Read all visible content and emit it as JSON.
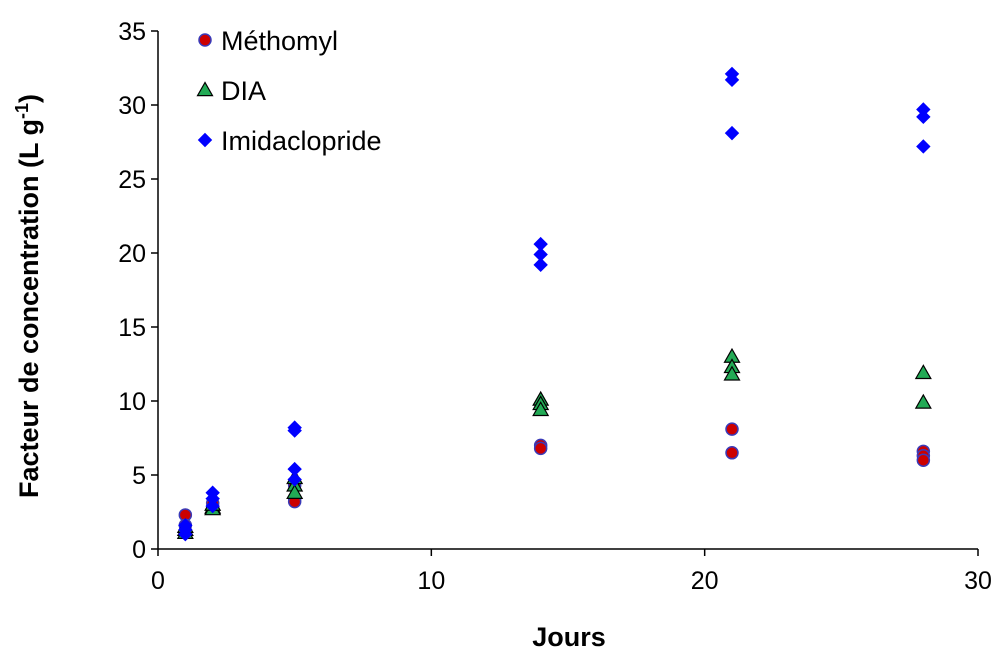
{
  "chart_data": {
    "type": "scatter",
    "title": "",
    "xlabel": "Jours",
    "ylabel": "Facteur de concentration (L g",
    "ylabel_sup": "-1",
    "ylabel_end": ")",
    "xlim": [
      0,
      30
    ],
    "ylim": [
      0,
      35
    ],
    "xticks": [
      0,
      10,
      20,
      30
    ],
    "yticks": [
      0,
      5,
      10,
      15,
      20,
      25,
      30,
      35
    ],
    "grid": false,
    "legend_position": "top-left",
    "series": [
      {
        "name": "Méthomyl",
        "marker": "circle",
        "color": "#cc0000",
        "edge": "#3a3ab8",
        "points": [
          [
            1,
            2.3
          ],
          [
            1,
            1.6
          ],
          [
            1,
            1.2
          ],
          [
            2,
            2.8
          ],
          [
            2,
            3.1
          ],
          [
            5,
            4.3
          ],
          [
            5,
            3.4
          ],
          [
            5,
            3.2
          ],
          [
            14,
            7.0
          ],
          [
            14,
            6.8
          ],
          [
            21,
            8.1
          ],
          [
            21,
            6.5
          ],
          [
            28,
            6.6
          ],
          [
            28,
            6.3
          ],
          [
            28,
            6.0
          ]
        ]
      },
      {
        "name": "DIA",
        "marker": "triangle",
        "color": "#22aa55",
        "edge": "#000000",
        "points": [
          [
            1,
            1.3
          ],
          [
            1,
            1.1
          ],
          [
            1,
            1.5
          ],
          [
            2,
            2.8
          ],
          [
            2,
            2.7
          ],
          [
            2,
            3.0
          ],
          [
            5,
            4.8
          ],
          [
            5,
            4.3
          ],
          [
            5,
            3.8
          ],
          [
            14,
            10.1
          ],
          [
            14,
            9.8
          ],
          [
            14,
            9.4
          ],
          [
            21,
            13.0
          ],
          [
            21,
            12.3
          ],
          [
            21,
            11.8
          ],
          [
            28,
            11.9
          ],
          [
            28,
            9.9
          ]
        ]
      },
      {
        "name": "Imidaclopride",
        "marker": "diamond",
        "color": "#0000ff",
        "edge": "#0000ff",
        "points": [
          [
            1,
            1.6
          ],
          [
            1,
            1.3
          ],
          [
            1,
            1.0
          ],
          [
            2,
            3.8
          ],
          [
            2,
            3.4
          ],
          [
            2,
            2.9
          ],
          [
            5,
            8.2
          ],
          [
            5,
            8.0
          ],
          [
            5,
            5.4
          ],
          [
            5,
            4.7
          ],
          [
            14,
            20.6
          ],
          [
            14,
            19.9
          ],
          [
            14,
            19.2
          ],
          [
            21,
            32.1
          ],
          [
            21,
            31.7
          ],
          [
            21,
            28.1
          ],
          [
            28,
            29.7
          ],
          [
            28,
            29.2
          ],
          [
            28,
            27.2
          ]
        ]
      }
    ]
  }
}
